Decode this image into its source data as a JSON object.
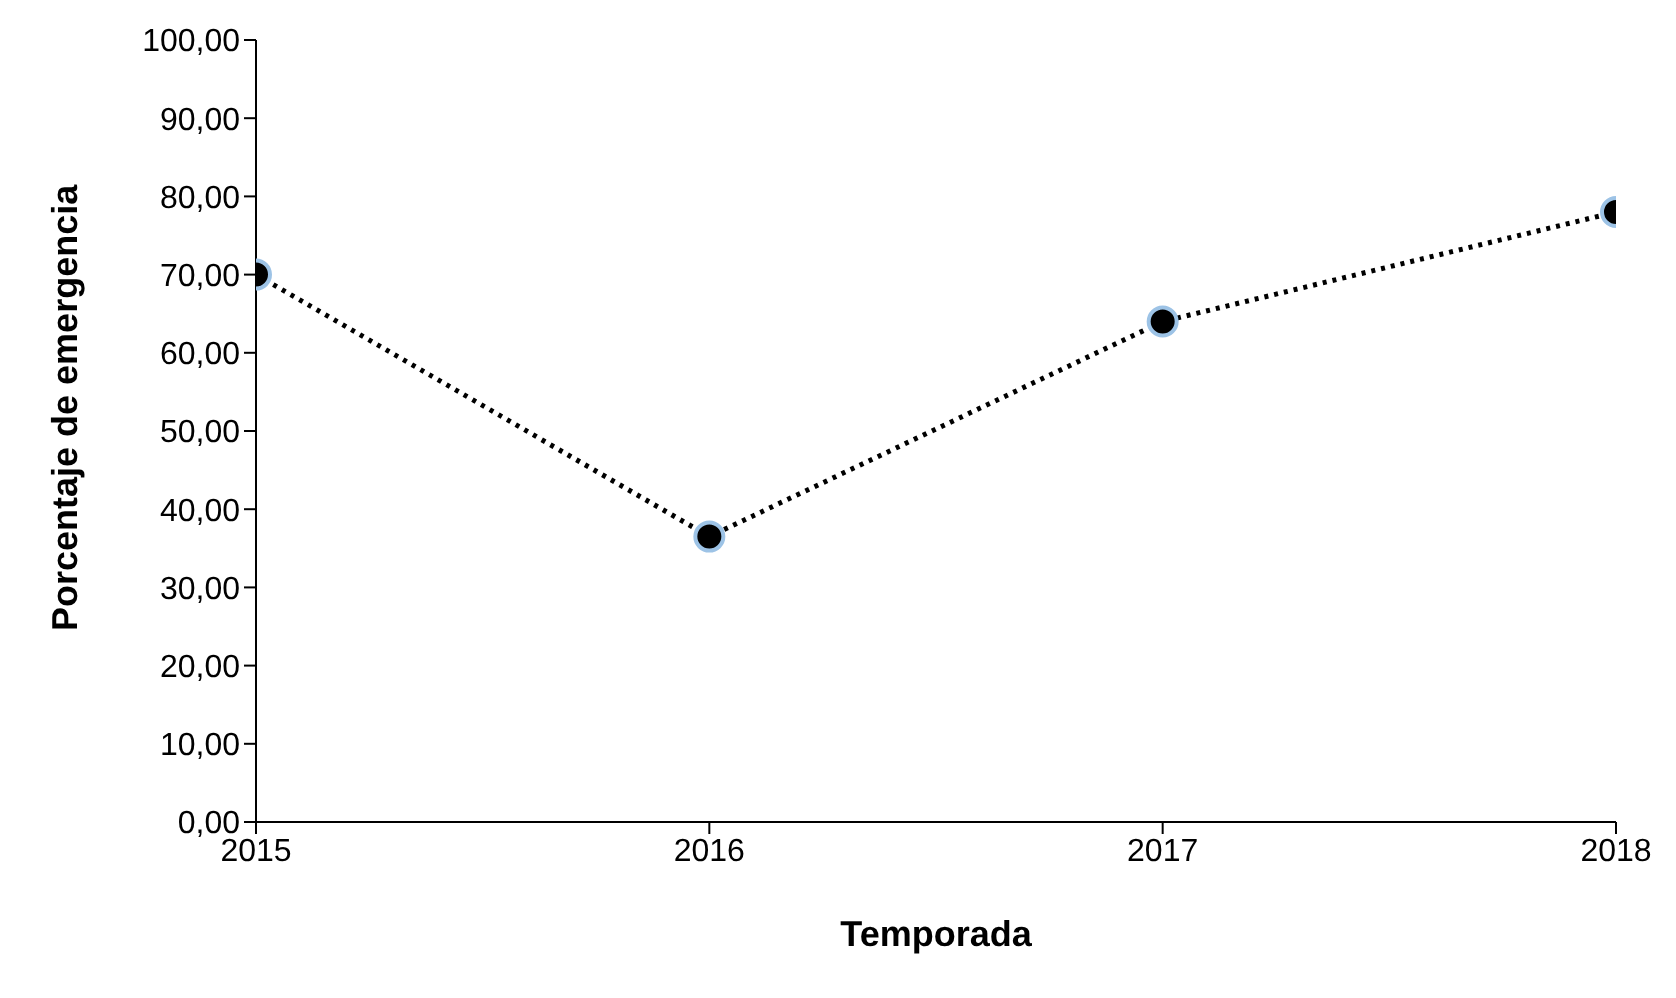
{
  "chart_data": {
    "type": "line",
    "xlabel": "Temporada",
    "ylabel": "Porcentaje de emergencia",
    "x": [
      2015,
      2016,
      2017,
      2018
    ],
    "series": [
      {
        "color": "#000000",
        "values": [
          70,
          36.5,
          64,
          78
        ]
      }
    ],
    "xlim": [
      2015,
      2018
    ],
    "xticks": [
      2015,
      2016,
      2017,
      2018
    ],
    "ylim": [
      0,
      100
    ],
    "yticks": [
      {
        "value": 0,
        "label": "0,00"
      },
      {
        "value": 10,
        "label": "10,00"
      },
      {
        "value": 20,
        "label": "20,00"
      },
      {
        "value": 30,
        "label": "30,00"
      },
      {
        "value": 40,
        "label": "40,00"
      },
      {
        "value": 50,
        "label": "50,00"
      },
      {
        "value": 60,
        "label": "60,00"
      },
      {
        "value": 70,
        "label": "70,00"
      },
      {
        "value": 80,
        "label": "80,00"
      },
      {
        "value": 90,
        "label": "90,00"
      },
      {
        "value": 100,
        "label": "100,00"
      }
    ],
    "marker": "circle",
    "line_style": "dotted",
    "grid": false,
    "legend": false
  }
}
